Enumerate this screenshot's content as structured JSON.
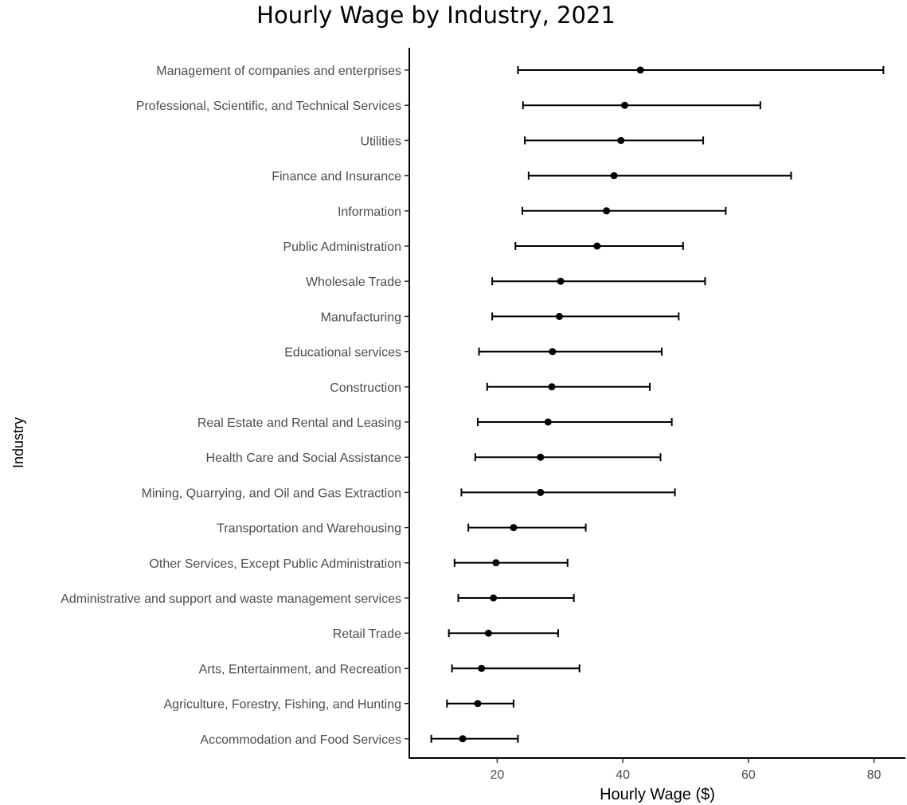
{
  "chart_data": {
    "type": "errorbar",
    "title": "Hourly Wage by Industry, 2021",
    "xlabel": "Hourly Wage ($)",
    "ylabel": "Industry",
    "xlim": [
      6,
      85
    ],
    "xticks": [
      20,
      40,
      60,
      80
    ],
    "grid": false,
    "categories": [
      "Management of companies and enterprises",
      "Professional, Scientific, and Technical Services",
      "Utilities",
      "Finance and Insurance",
      "Information",
      "Public Administration",
      "Wholesale Trade",
      "Manufacturing",
      "Educational services",
      "Construction",
      "Real Estate and Rental and Leasing",
      "Health Care and Social Assistance",
      "Mining, Quarrying, and Oil and Gas Extraction",
      "Transportation and Warehousing",
      "Other Services, Except Public Administration",
      "Administrative and support and waste management services",
      "Retail Trade",
      "Arts, Entertainment, and Recreation",
      "Agriculture, Forestry, Fishing, and Hunting",
      "Accommodation and Food Services"
    ],
    "values": [
      42.8,
      40.3,
      39.7,
      38.6,
      37.4,
      35.9,
      30.1,
      29.9,
      28.8,
      28.7,
      28.1,
      26.9,
      26.9,
      22.6,
      19.8,
      19.4,
      18.6,
      17.5,
      16.9,
      14.5
    ],
    "lower": [
      23.3,
      24.1,
      24.4,
      25.0,
      24.0,
      22.9,
      19.2,
      19.2,
      17.1,
      18.4,
      16.9,
      16.5,
      14.3,
      15.4,
      13.2,
      13.8,
      12.3,
      12.8,
      12.0,
      9.5
    ],
    "upper": [
      81.5,
      61.9,
      52.8,
      66.8,
      56.4,
      49.6,
      53.1,
      48.9,
      46.2,
      44.3,
      47.8,
      46.0,
      48.3,
      34.1,
      31.2,
      32.2,
      29.7,
      33.1,
      22.6,
      23.3
    ]
  }
}
